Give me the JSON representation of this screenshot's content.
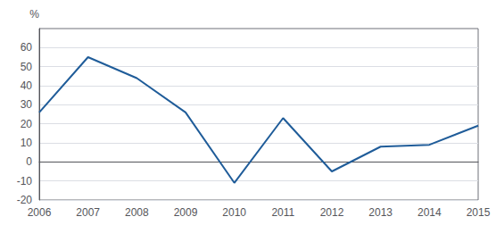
{
  "chart_data": {
    "type": "line",
    "x": [
      2006,
      2007,
      2008,
      2009,
      2010,
      2011,
      2012,
      2013,
      2014,
      2015
    ],
    "values": [
      26,
      55,
      44,
      26,
      -11,
      23,
      -5,
      8,
      9,
      19
    ],
    "xlim": [
      2006,
      2015
    ],
    "xticks": [
      2006,
      2007,
      2008,
      2009,
      2010,
      2011,
      2012,
      2013,
      2014,
      2015
    ],
    "ylim": [
      -20,
      70
    ],
    "yticks": [
      -20,
      -10,
      0,
      10,
      20,
      30,
      40,
      50,
      60
    ],
    "ylabel": "%",
    "color": "#1F5C99",
    "grid": true
  }
}
